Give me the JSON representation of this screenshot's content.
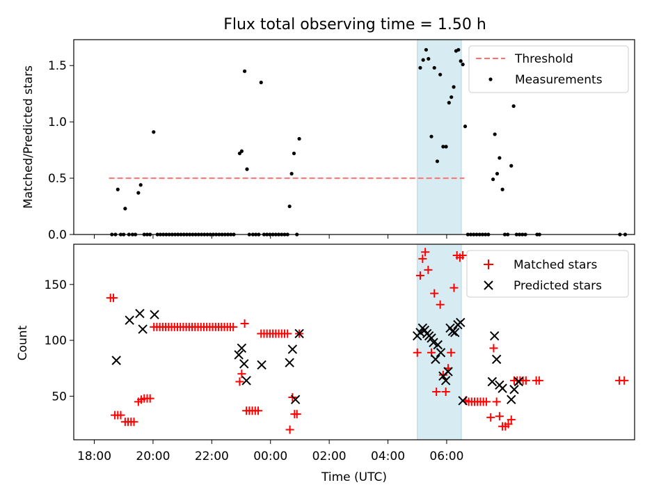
{
  "chart_data": [
    {
      "type": "scatter",
      "title": "Flux total observing time = 1.50 h",
      "ylabel": "Matched/Predicted stars",
      "xlabel": "",
      "xlim": [
        -6.7,
        12.4
      ],
      "ylim": [
        0,
        1.73
      ],
      "yticks": [
        0.0,
        0.5,
        1.0,
        1.5
      ],
      "ytick_labels": [
        "0.0",
        "0.5",
        "1.0",
        "1.5"
      ],
      "shaded_span": {
        "x0": 5.0,
        "x1": 6.5,
        "color": "#add8e6"
      },
      "legend": {
        "placement": "upper right",
        "entries": [
          "Threshold",
          "Measurements"
        ]
      },
      "series": [
        {
          "name": "Threshold",
          "kind": "line",
          "style": "dashed",
          "color": "#ff7070",
          "points": [
            [
              -5.5,
              0.5
            ],
            [
              6.6,
              0.5
            ]
          ]
        },
        {
          "name": "Measurements",
          "kind": "scatter",
          "color": "#000000",
          "points": [
            [
              -5.4,
              0
            ],
            [
              -5.28,
              0
            ],
            [
              -5.2,
              0.4
            ],
            [
              -5.1,
              0
            ],
            [
              -5.0,
              0
            ],
            [
              -4.95,
              0.23
            ],
            [
              -4.82,
              0
            ],
            [
              -4.7,
              0
            ],
            [
              -4.6,
              0
            ],
            [
              -4.5,
              0.37
            ],
            [
              -4.42,
              0.44
            ],
            [
              -4.3,
              0
            ],
            [
              -4.2,
              0
            ],
            [
              -4.1,
              0
            ],
            [
              -3.98,
              0.91
            ],
            [
              -3.85,
              0
            ],
            [
              -3.75,
              0
            ],
            [
              -3.65,
              0
            ],
            [
              -3.55,
              0
            ],
            [
              -3.45,
              0
            ],
            [
              -3.35,
              0
            ],
            [
              -3.25,
              0
            ],
            [
              -3.15,
              0
            ],
            [
              -3.05,
              0
            ],
            [
              -2.95,
              0
            ],
            [
              -2.85,
              0
            ],
            [
              -2.75,
              0
            ],
            [
              -2.65,
              0
            ],
            [
              -2.55,
              0
            ],
            [
              -2.45,
              0
            ],
            [
              -2.35,
              0
            ],
            [
              -2.25,
              0
            ],
            [
              -2.15,
              0
            ],
            [
              -2.05,
              0
            ],
            [
              -1.95,
              0
            ],
            [
              -1.85,
              0
            ],
            [
              -1.75,
              0
            ],
            [
              -1.65,
              0
            ],
            [
              -1.55,
              0
            ],
            [
              -1.45,
              0
            ],
            [
              -1.35,
              0
            ],
            [
              -1.25,
              0
            ],
            [
              -1.05,
              0.72
            ],
            [
              -0.98,
              0.74
            ],
            [
              -0.88,
              1.45
            ],
            [
              -0.8,
              0.58
            ],
            [
              -0.72,
              0
            ],
            [
              -0.6,
              0
            ],
            [
              -0.5,
              0
            ],
            [
              -0.4,
              0
            ],
            [
              -0.32,
              1.35
            ],
            [
              -0.22,
              0
            ],
            [
              -0.12,
              0
            ],
            [
              -0.02,
              0
            ],
            [
              0.08,
              0
            ],
            [
              0.18,
              0
            ],
            [
              0.28,
              0
            ],
            [
              0.38,
              0
            ],
            [
              0.48,
              0
            ],
            [
              0.58,
              0
            ],
            [
              0.65,
              0.25
            ],
            [
              0.72,
              0.54
            ],
            [
              0.8,
              0.72
            ],
            [
              0.9,
              0
            ],
            [
              0.98,
              0.85
            ],
            [
              5.1,
              1.48
            ],
            [
              5.2,
              1.55
            ],
            [
              5.3,
              1.64
            ],
            [
              5.38,
              1.56
            ],
            [
              5.48,
              0.87
            ],
            [
              5.58,
              1.48
            ],
            [
              5.68,
              0.65
            ],
            [
              5.78,
              1.42
            ],
            [
              5.88,
              0.78
            ],
            [
              5.98,
              0.78
            ],
            [
              6.08,
              1.17
            ],
            [
              6.16,
              1.22
            ],
            [
              6.24,
              1.31
            ],
            [
              6.32,
              1.63
            ],
            [
              6.4,
              1.64
            ],
            [
              6.48,
              1.54
            ],
            [
              6.55,
              1.51
            ],
            [
              6.63,
              0.96
            ],
            [
              6.72,
              0
            ],
            [
              6.82,
              0
            ],
            [
              6.92,
              0
            ],
            [
              7.02,
              0
            ],
            [
              7.12,
              0
            ],
            [
              7.22,
              0
            ],
            [
              7.32,
              0
            ],
            [
              7.42,
              0
            ],
            [
              7.58,
              0.49
            ],
            [
              7.64,
              0.89
            ],
            [
              7.72,
              0.54
            ],
            [
              7.8,
              0.68
            ],
            [
              7.9,
              0.4
            ],
            [
              7.98,
              0
            ],
            [
              8.08,
              0
            ],
            [
              8.2,
              0.61
            ],
            [
              8.28,
              1.14
            ],
            [
              8.38,
              0
            ],
            [
              8.48,
              0
            ],
            [
              8.58,
              0
            ],
            [
              8.68,
              0
            ],
            [
              9.08,
              0
            ],
            [
              9.16,
              0
            ],
            [
              11.9,
              0
            ],
            [
              12.08,
              0
            ]
          ]
        }
      ]
    },
    {
      "type": "scatter",
      "title": "",
      "ylabel": "Count",
      "xlabel": "Time (UTC)",
      "xlim": [
        -6.7,
        12.4
      ],
      "ylim": [
        11,
        186
      ],
      "yticks": [
        50,
        100,
        150
      ],
      "ytick_labels": [
        "50",
        "100",
        "150"
      ],
      "xticks": [
        -6,
        -4,
        -2,
        0,
        2,
        4,
        6
      ],
      "xtick_labels": [
        "18:00",
        "20:00",
        "22:00",
        "00:00",
        "02:00",
        "04:00",
        "06:00"
      ],
      "shaded_span": {
        "x0": 5.0,
        "x1": 6.5,
        "color": "#add8e6"
      },
      "legend": {
        "placement": "upper right",
        "entries": [
          "Matched stars",
          "Predicted stars"
        ]
      },
      "series": [
        {
          "name": "Matched stars",
          "kind": "scatter",
          "marker": "+",
          "color": "#ff0000",
          "points": [
            [
              -5.45,
              138
            ],
            [
              -5.35,
              138
            ],
            [
              -5.3,
              33
            ],
            [
              -5.2,
              33
            ],
            [
              -5.1,
              33
            ],
            [
              -4.95,
              27
            ],
            [
              -4.85,
              27
            ],
            [
              -4.75,
              27
            ],
            [
              -4.65,
              27
            ],
            [
              -4.5,
              45
            ],
            [
              -4.4,
              47
            ],
            [
              -4.3,
              48
            ],
            [
              -4.2,
              48
            ],
            [
              -4.1,
              48
            ],
            [
              -3.97,
              112
            ],
            [
              -3.87,
              112
            ],
            [
              -3.77,
              112
            ],
            [
              -3.67,
              112
            ],
            [
              -3.57,
              112
            ],
            [
              -3.47,
              112
            ],
            [
              -3.37,
              112
            ],
            [
              -3.27,
              112
            ],
            [
              -3.17,
              112
            ],
            [
              -3.07,
              112
            ],
            [
              -2.97,
              112
            ],
            [
              -2.87,
              112
            ],
            [
              -2.77,
              112
            ],
            [
              -2.67,
              112
            ],
            [
              -2.57,
              112
            ],
            [
              -2.47,
              112
            ],
            [
              -2.37,
              112
            ],
            [
              -2.27,
              112
            ],
            [
              -2.17,
              112
            ],
            [
              -2.07,
              112
            ],
            [
              -1.97,
              112
            ],
            [
              -1.87,
              112
            ],
            [
              -1.77,
              112
            ],
            [
              -1.67,
              112
            ],
            [
              -1.57,
              112
            ],
            [
              -1.47,
              112
            ],
            [
              -1.37,
              112
            ],
            [
              -1.27,
              112
            ],
            [
              -1.05,
              63
            ],
            [
              -0.98,
              70
            ],
            [
              -0.88,
              115
            ],
            [
              -0.82,
              37
            ],
            [
              -0.72,
              37
            ],
            [
              -0.62,
              37
            ],
            [
              -0.52,
              37
            ],
            [
              -0.42,
              37
            ],
            [
              -0.32,
              106
            ],
            [
              -0.22,
              106
            ],
            [
              -0.12,
              106
            ],
            [
              -0.02,
              106
            ],
            [
              0.08,
              106
            ],
            [
              0.18,
              106
            ],
            [
              0.28,
              106
            ],
            [
              0.38,
              106
            ],
            [
              0.48,
              106
            ],
            [
              0.58,
              106
            ],
            [
              0.66,
              20
            ],
            [
              0.75,
              49
            ],
            [
              0.82,
              34
            ],
            [
              0.9,
              34
            ],
            [
              0.98,
              106
            ],
            [
              5.0,
              89
            ],
            [
              5.1,
              158
            ],
            [
              5.18,
              173
            ],
            [
              5.27,
              179
            ],
            [
              5.37,
              163
            ],
            [
              5.48,
              89
            ],
            [
              5.58,
              142
            ],
            [
              5.65,
              54
            ],
            [
              5.78,
              132
            ],
            [
              5.88,
              69
            ],
            [
              5.97,
              54
            ],
            [
              6.05,
              75
            ],
            [
              6.15,
              89
            ],
            [
              6.25,
              147
            ],
            [
              6.35,
              176
            ],
            [
              6.45,
              174
            ],
            [
              6.55,
              176
            ],
            [
              6.65,
              46
            ],
            [
              6.75,
              45
            ],
            [
              6.85,
              45
            ],
            [
              6.95,
              45
            ],
            [
              7.05,
              45
            ],
            [
              7.15,
              45
            ],
            [
              7.25,
              45
            ],
            [
              7.35,
              45
            ],
            [
              7.5,
              31
            ],
            [
              7.6,
              93
            ],
            [
              7.7,
              45
            ],
            [
              7.8,
              32
            ],
            [
              7.9,
              23
            ],
            [
              8.0,
              23
            ],
            [
              8.1,
              25
            ],
            [
              8.2,
              29
            ],
            [
              8.3,
              64
            ],
            [
              8.4,
              64
            ],
            [
              8.5,
              64
            ],
            [
              8.6,
              64
            ],
            [
              8.7,
              64
            ],
            [
              9.05,
              64
            ],
            [
              9.15,
              64
            ],
            [
              11.88,
              64
            ],
            [
              12.05,
              64
            ]
          ]
        },
        {
          "name": "Predicted stars",
          "kind": "scatter",
          "marker": "x",
          "color": "#000000",
          "points": [
            [
              -5.25,
              82
            ],
            [
              -4.8,
              118
            ],
            [
              -4.45,
              124
            ],
            [
              -4.35,
              110
            ],
            [
              -3.95,
              123
            ],
            [
              -1.08,
              87
            ],
            [
              -0.98,
              93
            ],
            [
              -0.9,
              79
            ],
            [
              -0.82,
              64
            ],
            [
              -0.3,
              78
            ],
            [
              0.65,
              80
            ],
            [
              0.75,
              92
            ],
            [
              0.85,
              47
            ],
            [
              0.98,
              106
            ],
            [
              5.0,
              104
            ],
            [
              5.1,
              107
            ],
            [
              5.18,
              111
            ],
            [
              5.25,
              109
            ],
            [
              5.33,
              106
            ],
            [
              5.4,
              104
            ],
            [
              5.48,
              102
            ],
            [
              5.55,
              98
            ],
            [
              5.62,
              83
            ],
            [
              5.7,
              96
            ],
            [
              5.8,
              89
            ],
            [
              5.88,
              68
            ],
            [
              5.97,
              64
            ],
            [
              6.05,
              72
            ],
            [
              6.12,
              111
            ],
            [
              6.2,
              108
            ],
            [
              6.28,
              107
            ],
            [
              6.38,
              114
            ],
            [
              6.47,
              116
            ],
            [
              6.55,
              46
            ],
            [
              7.55,
              63
            ],
            [
              7.63,
              104
            ],
            [
              7.7,
              83
            ],
            [
              7.8,
              60
            ],
            [
              7.9,
              57
            ],
            [
              8.2,
              47
            ],
            [
              8.3,
              56
            ],
            [
              8.45,
              63
            ]
          ]
        }
      ]
    }
  ]
}
